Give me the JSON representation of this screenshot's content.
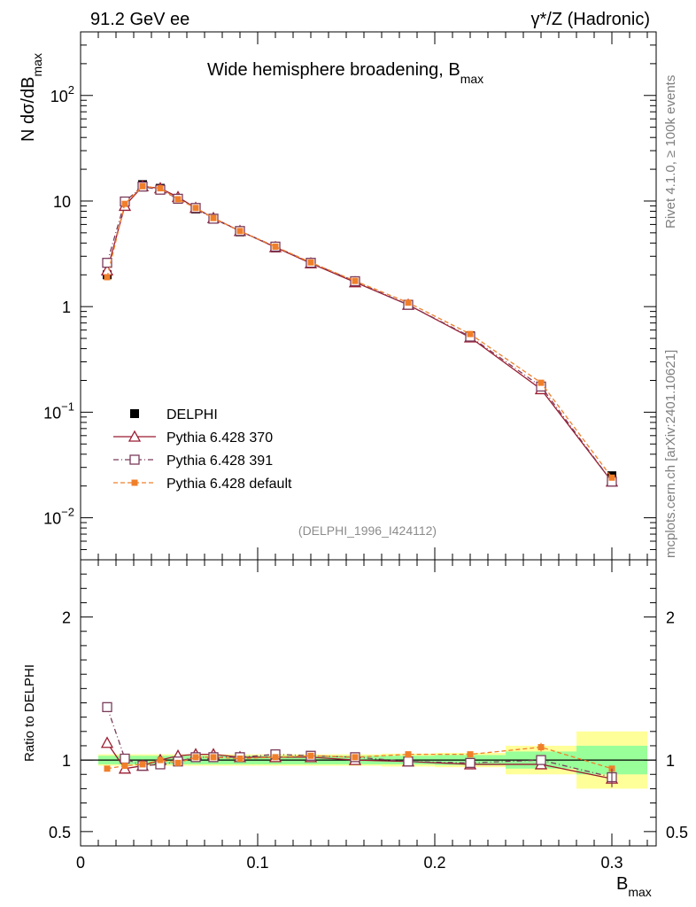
{
  "header": {
    "left": "91.2 GeV ee",
    "right": "γ*/Z (Hadronic)"
  },
  "side_labels": {
    "rivet": "Rivet 4.1.0, ≥ 100k events",
    "mcplots": "mcplots.cern.ch [arXiv:2401.10621]"
  },
  "chart_data": {
    "type": "line",
    "title_main": "Wide hemisphere broadening, B",
    "title_sub": "max",
    "analysis_tag": "(DELPHI_1996_I424112)",
    "ylabel": "N  dσ/dB",
    "ylabel_sub": "max",
    "ratio_ylabel": "Ratio to DELPHI",
    "xlabel": "B",
    "xlabel_sub": "max",
    "xlim": [
      0,
      0.325
    ],
    "ylim_main": [
      0.004,
      400
    ],
    "ylim_ratio": [
      0.4,
      2.4
    ],
    "x_ticks": [
      {
        "v": 0,
        "label": "0"
      },
      {
        "v": 0.1,
        "label": "0.1"
      },
      {
        "v": 0.2,
        "label": "0.2"
      },
      {
        "v": 0.3,
        "label": "0.3"
      }
    ],
    "y_ticks_main": [
      {
        "v": 100,
        "base": "10",
        "exp": "2"
      },
      {
        "v": 10,
        "base": "10",
        "exp": ""
      },
      {
        "v": 1,
        "base": "1",
        "exp": ""
      },
      {
        "v": 0.1,
        "base": "10",
        "exp": "−1"
      },
      {
        "v": 0.01,
        "base": "10",
        "exp": "−2"
      }
    ],
    "y_ticks_ratio": [
      {
        "v": 2,
        "label": "2"
      },
      {
        "v": 1,
        "label": "1"
      },
      {
        "v": 0.5,
        "label": "0.5"
      }
    ],
    "x": [
      0.015,
      0.025,
      0.035,
      0.045,
      0.055,
      0.065,
      0.075,
      0.09,
      0.11,
      0.13,
      0.155,
      0.185,
      0.22,
      0.26,
      0.3
    ],
    "bin_edges": [
      0.01,
      0.02,
      0.03,
      0.04,
      0.05,
      0.06,
      0.07,
      0.08,
      0.1,
      0.12,
      0.14,
      0.17,
      0.2,
      0.24,
      0.28,
      0.32
    ],
    "data": {
      "name": "DELPHI",
      "values": [
        2.0,
        9.9,
        14.3,
        13.2,
        10.6,
        8.4,
        6.8,
        5.1,
        3.6,
        2.55,
        1.7,
        1.05,
        0.53,
        0.175,
        0.025
      ],
      "band_inner": [
        0.03,
        0.03,
        0.03,
        0.03,
        0.03,
        0.03,
        0.03,
        0.03,
        0.03,
        0.03,
        0.03,
        0.03,
        0.035,
        0.06,
        0.1
      ],
      "band_outer": [
        0.04,
        0.04,
        0.04,
        0.04,
        0.04,
        0.04,
        0.04,
        0.04,
        0.04,
        0.04,
        0.04,
        0.045,
        0.05,
        0.1,
        0.2
      ]
    },
    "series": [
      {
        "name": "Pythia 6.428 370",
        "color": "#9b1b30",
        "style": "solid",
        "marker": "triangle",
        "values": [
          2.2,
          9.0,
          13.8,
          13.2,
          10.9,
          8.6,
          6.9,
          5.2,
          3.65,
          2.57,
          1.7,
          1.04,
          0.51,
          0.165,
          0.022
        ],
        "ratio": [
          1.12,
          0.94,
          0.96,
          1.0,
          1.03,
          1.04,
          1.04,
          1.02,
          1.02,
          1.02,
          1.0,
          0.99,
          0.97,
          0.97,
          0.87
        ]
      },
      {
        "name": "Pythia 6.428 391",
        "color": "#7a3b5a",
        "style": "dashdot",
        "marker": "square",
        "values": [
          2.6,
          9.9,
          13.7,
          12.8,
          10.5,
          8.6,
          6.8,
          5.2,
          3.7,
          2.6,
          1.74,
          1.04,
          0.52,
          0.175,
          0.022
        ],
        "ratio": [
          1.37,
          1.01,
          0.96,
          0.97,
          0.99,
          1.02,
          1.02,
          1.02,
          1.04,
          1.03,
          1.02,
          0.99,
          0.98,
          1.0,
          0.88
        ]
      },
      {
        "name": "Pythia 6.428 default",
        "color": "#f07f2a",
        "style": "dashed",
        "marker": "fsquare",
        "values": [
          1.9,
          9.4,
          13.8,
          13.2,
          10.4,
          8.6,
          6.9,
          5.2,
          3.7,
          2.62,
          1.75,
          1.09,
          0.55,
          0.19,
          0.024
        ],
        "ratio": [
          0.94,
          0.96,
          0.97,
          1.0,
          0.98,
          1.02,
          1.02,
          1.01,
          1.02,
          1.03,
          1.02,
          1.04,
          1.04,
          1.09,
          0.94
        ]
      }
    ],
    "legend_placement": "lower-left"
  }
}
